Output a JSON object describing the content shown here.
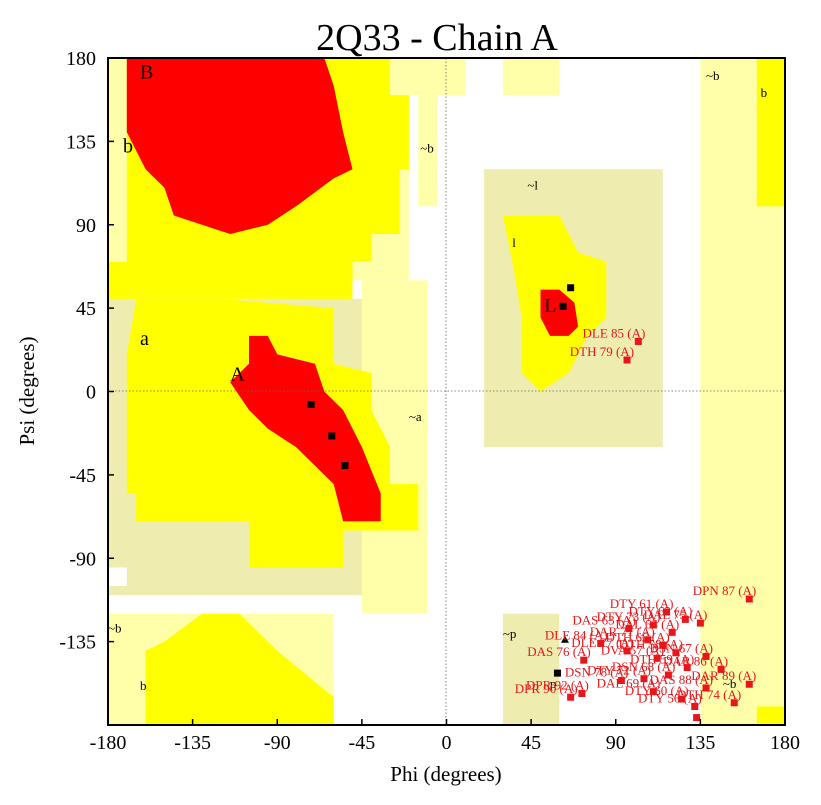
{
  "chart_data": {
    "type": "scatter",
    "title": "2Q33 - Chain A",
    "xlabel": "Phi (degrees)",
    "ylabel": "Psi (degrees)",
    "xlim": [
      -180,
      180
    ],
    "ylim": [
      -180,
      180
    ],
    "xticks": [
      "-180",
      "-135",
      "-90",
      "-45",
      "0",
      "45",
      "90",
      "135",
      "180"
    ],
    "yticks": [
      "180",
      "135",
      "90",
      "45",
      "0",
      "-45",
      "-90",
      "-135"
    ],
    "colors": {
      "core": "#ff0000",
      "allowed": "#ffff00",
      "generous": "#ffffaa",
      "glycine_region": "#efecb0",
      "point_normal": "#000000",
      "point_outlier": "#e8161b"
    },
    "region_labels": [
      {
        "text": "B",
        "phi": -163,
        "psi": 169,
        "size": "large"
      },
      {
        "text": "b",
        "phi": -172,
        "psi": 129,
        "size": "large"
      },
      {
        "text": "~b",
        "phi": -14,
        "psi": 129,
        "size": "small"
      },
      {
        "text": "~b",
        "phi": 138,
        "psi": 168,
        "size": "small"
      },
      {
        "text": "b",
        "phi": 167,
        "psi": 159,
        "size": "small"
      },
      {
        "text": "~l",
        "phi": 43,
        "psi": 109,
        "size": "small"
      },
      {
        "text": "l",
        "phi": 35,
        "psi": 78,
        "size": "small"
      },
      {
        "text": "L",
        "phi": 52,
        "psi": 43,
        "size": "large"
      },
      {
        "text": "a",
        "phi": -163,
        "psi": 25,
        "size": "large"
      },
      {
        "text": "A",
        "phi": -115,
        "psi": 6,
        "size": "large"
      },
      {
        "text": "~a",
        "phi": -20,
        "psi": -16,
        "size": "small"
      },
      {
        "text": "~b",
        "phi": -180,
        "psi": -130,
        "size": "small"
      },
      {
        "text": "b",
        "phi": -163,
        "psi": -161,
        "size": "small"
      },
      {
        "text": "~p",
        "phi": 30,
        "psi": -133,
        "size": "small"
      },
      {
        "text": "p",
        "phi": 55,
        "psi": -160,
        "size": "small"
      },
      {
        "text": "~b",
        "phi": 147,
        "psi": -160,
        "size": "small"
      }
    ],
    "points_normal": [
      {
        "phi": -72,
        "psi": -7,
        "marker": "square"
      },
      {
        "phi": -61,
        "psi": -24,
        "marker": "square"
      },
      {
        "phi": -54,
        "psi": -40,
        "marker": "square"
      },
      {
        "phi": 66,
        "psi": 56,
        "marker": "square"
      },
      {
        "phi": 62,
        "psi": 46,
        "marker": "square"
      },
      {
        "phi": 63,
        "psi": -134,
        "marker": "triangle"
      },
      {
        "phi": 59,
        "psi": -152,
        "marker": "square"
      }
    ],
    "points_outliers": [
      {
        "phi": 102,
        "psi": 27,
        "label": "DLE 85 (A)"
      },
      {
        "phi": 96,
        "psi": 17,
        "label": "DTH 79 (A)"
      },
      {
        "phi": 161,
        "psi": -112,
        "label": "DPN 87 (A)"
      },
      {
        "phi": 117,
        "psi": -119,
        "label": "DTY 61 (A)"
      },
      {
        "phi": 135,
        "psi": -125,
        "label": "DAL 75 (A)"
      },
      {
        "phi": 127,
        "psi": -123,
        "label": "DTY 62 (A)"
      },
      {
        "phi": 110,
        "psi": -126,
        "label": "DTY 73 (A)"
      },
      {
        "phi": 120,
        "psi": -130,
        "label": "DAL 64 (A)"
      },
      {
        "phi": 97,
        "psi": -128,
        "label": "DAS 63 (A)"
      },
      {
        "phi": 82,
        "psi": -136,
        "label": "DLE 84 (A)"
      },
      {
        "phi": 107,
        "psi": -134,
        "label": "DAR 71 (A)"
      },
      {
        "phi": 115,
        "psi": -137,
        "label": "DTH 66 (A)"
      },
      {
        "phi": 96,
        "psi": -140,
        "label": "DLE 77 (A)"
      },
      {
        "phi": 122,
        "psi": -141,
        "label": "DTH 58 (A)"
      },
      {
        "phi": 138,
        "psi": -143,
        "label": "DSN 67 (A)"
      },
      {
        "phi": 73,
        "psi": -145,
        "label": "DAS 76 (A)"
      },
      {
        "phi": 112,
        "psi": -144,
        "label": "DVA 57 (A)"
      },
      {
        "phi": 146,
        "psi": -150,
        "label": "DAR 86 (A)"
      },
      {
        "phi": 128,
        "psi": -149,
        "label": "DTH 59 (A)"
      },
      {
        "phi": 118,
        "psi": -153,
        "label": "DSN 68 (A)"
      },
      {
        "phi": 105,
        "psi": -155,
        "label": "DTY 72 (A)"
      },
      {
        "phi": 93,
        "psi": -156,
        "label": "DSN 78 (A)"
      },
      {
        "phi": 161,
        "psi": -158,
        "label": "DAR 89 (A)"
      },
      {
        "phi": 138,
        "psi": -160,
        "label": "DAS 88 (A)"
      },
      {
        "phi": 110,
        "psi": -162,
        "label": "DAL 69 (A)"
      },
      {
        "phi": 125,
        "psi": -166,
        "label": "DTY 60 (A)"
      },
      {
        "phi": 153,
        "psi": -168,
        "label": "DTH 74 (A)"
      },
      {
        "phi": 72,
        "psi": -163,
        "label": "DPR 92 (A)"
      },
      {
        "phi": 66,
        "psi": -165,
        "label": "DPR 90 (A)"
      },
      {
        "phi": 132,
        "psi": -170,
        "label": "DTY 56 (A)"
      },
      {
        "phi": 133,
        "psi": -176,
        "label": ""
      }
    ]
  }
}
